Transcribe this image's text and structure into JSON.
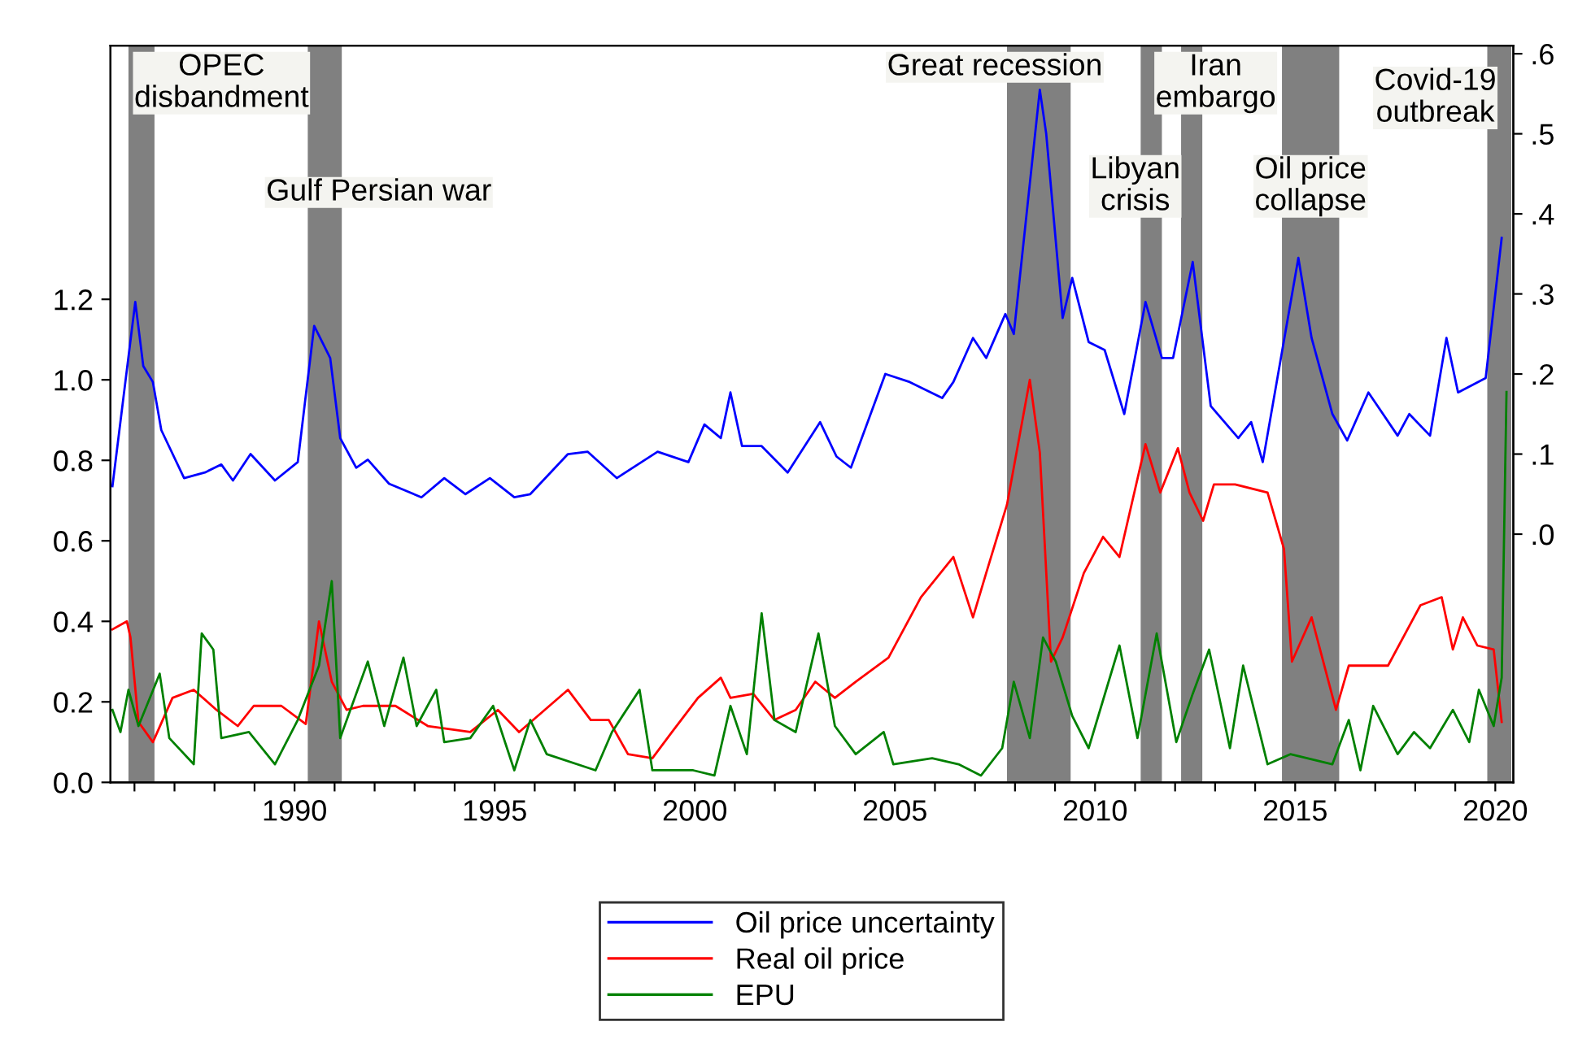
{
  "chart_data": {
    "type": "line",
    "legend": "bottom",
    "grid": false,
    "marker": "none",
    "line_style": "solid",
    "xlim": [
      1985.4,
      2020.45
    ],
    "ylim": [
      0,
      1.83
    ],
    "y2lim": [
      -0.31,
      0.61
    ],
    "xticks": [
      {
        "value": 1986,
        "label": null
      },
      {
        "value": 1987,
        "label": null
      },
      {
        "value": 1988,
        "label": null
      },
      {
        "value": 1989,
        "label": null
      },
      1990,
      {
        "value": 1991,
        "label": null
      },
      {
        "value": 1992,
        "label": null
      },
      {
        "value": 1993,
        "label": null
      },
      {
        "value": 1994,
        "label": null
      },
      1995,
      {
        "value": 1996,
        "label": null
      },
      {
        "value": 1997,
        "label": null
      },
      {
        "value": 1998,
        "label": null
      },
      {
        "value": 1999,
        "label": null
      },
      2000,
      {
        "value": 2001,
        "label": null
      },
      {
        "value": 2002,
        "label": null
      },
      {
        "value": 2003,
        "label": null
      },
      {
        "value": 2004,
        "label": null
      },
      2005,
      {
        "value": 2006,
        "label": null
      },
      {
        "value": 2007,
        "label": null
      },
      {
        "value": 2008,
        "label": null
      },
      {
        "value": 2009,
        "label": null
      },
      2010,
      {
        "value": 2011,
        "label": null
      },
      {
        "value": 2012,
        "label": null
      },
      {
        "value": 2013,
        "label": null
      },
      {
        "value": 2014,
        "label": null
      },
      2015,
      {
        "value": 2016,
        "label": null
      },
      {
        "value": 2017,
        "label": null
      },
      {
        "value": 2018,
        "label": null
      },
      {
        "value": 2019,
        "label": null
      },
      2020
    ],
    "yticks": [
      {
        "value": 0,
        "label": "0.0"
      },
      {
        "value": 0.2,
        "label": "0.2"
      },
      {
        "value": 0.4,
        "label": "0.4"
      },
      {
        "value": 0.6,
        "label": "0.6"
      },
      {
        "value": 0.8,
        "label": "0.8"
      },
      {
        "value": 1,
        "label": "1.0"
      },
      {
        "value": 1.2,
        "label": "1.2"
      }
    ],
    "y2ticks": [
      {
        "value": 0,
        "label": ".0"
      },
      {
        "value": 0.1,
        "label": ".1"
      },
      {
        "value": 0.2,
        "label": ".2"
      },
      {
        "value": 0.3,
        "label": ".3"
      },
      {
        "value": 0.4,
        "label": ".4"
      },
      {
        "value": 0.5,
        "label": ".5"
      },
      {
        "value": 0.6,
        "label": ".6"
      }
    ],
    "bands": [
      {
        "axis": "x",
        "from": 1985.85,
        "to": 1986.5,
        "color": "#808080",
        "label": "OPEC\ndisbandment"
      },
      {
        "axis": "x",
        "from": 1990.33,
        "to": 1991.18,
        "color": "#808080",
        "label": "Gulf Persian war"
      },
      {
        "axis": "x",
        "from": 2007.8,
        "to": 2009.39,
        "color": "#808080",
        "label": "Great recession"
      },
      {
        "axis": "x",
        "from": 2011.14,
        "to": 2011.67,
        "color": "#808080",
        "label": "Libyan\ncrisis"
      },
      {
        "axis": "x",
        "from": 2012.15,
        "to": 2012.68,
        "color": "#808080",
        "label": "Iran\nembargo"
      },
      {
        "axis": "x",
        "from": 2014.67,
        "to": 2016.1,
        "color": "#808080",
        "label": "Oil price\ncollapse"
      },
      {
        "axis": "x",
        "from": 2019.8,
        "to": 2020.4,
        "color": "#808080",
        "label": "Covid-19\noutbreak"
      }
    ],
    "series": [
      {
        "name": "Oil price uncertainty",
        "color": "#0000ff",
        "axis": "y2",
        "x": [
          1985.45,
          1986.02,
          1986.22,
          1986.46,
          1986.67,
          1987.24,
          1987.76,
          1988.17,
          1988.46,
          1988.9,
          1989.51,
          1990.08,
          1990.49,
          1990.69,
          1990.89,
          1991.14,
          1991.54,
          1991.83,
          1992.36,
          1993.17,
          1993.74,
          1994.27,
          1994.88,
          1995.49,
          1995.89,
          1996.83,
          1997.32,
          1998.05,
          1999.07,
          1999.84,
          2000.24,
          2000.65,
          2000.89,
          2001.18,
          2001.67,
          2002.32,
          2003.13,
          2003.54,
          2003.9,
          2004.76,
          2005.37,
          2006.18,
          2006.46,
          2006.95,
          2007.28,
          2007.76,
          2007.97,
          2008.62,
          2008.78,
          2009.19,
          2009.43,
          2009.84,
          2010.24,
          2010.73,
          2011.26,
          2011.67,
          2011.95,
          2012.44,
          2012.89,
          2013.58,
          2013.9,
          2014.19,
          2015.08,
          2015.41,
          2015.93,
          2016.3,
          2016.83,
          2017.56,
          2017.85,
          2018.37,
          2018.78,
          2019.07,
          2019.76,
          2020.0,
          2020.16
        ],
        "values": [
          0.06,
          0.29,
          0.21,
          0.19,
          0.13,
          0.07,
          0.077,
          0.087,
          0.067,
          0.1,
          0.067,
          0.09,
          0.26,
          0.24,
          0.22,
          0.12,
          0.083,
          0.093,
          0.063,
          0.046,
          0.07,
          0.05,
          0.07,
          0.046,
          0.05,
          0.1,
          0.103,
          0.07,
          0.103,
          0.09,
          0.137,
          0.12,
          0.177,
          0.11,
          0.11,
          0.077,
          0.14,
          0.097,
          0.083,
          0.2,
          0.19,
          0.17,
          0.19,
          0.245,
          0.22,
          0.275,
          0.25,
          0.555,
          0.5,
          0.27,
          0.32,
          0.24,
          0.23,
          0.15,
          0.29,
          0.22,
          0.22,
          0.34,
          0.16,
          0.12,
          0.14,
          0.09,
          0.345,
          0.245,
          0.15,
          0.117,
          0.177,
          0.123,
          0.15,
          0.123,
          0.245,
          0.177,
          0.195,
          0.3,
          0.37
        ]
      },
      {
        "name": "Real oil price",
        "color": "#ff0000",
        "x": [
          1985.45,
          1985.81,
          1985.9,
          1986.1,
          1986.46,
          1986.95,
          1987.48,
          1988.05,
          1988.58,
          1988.98,
          1989.67,
          1990.28,
          1990.61,
          1990.93,
          1991.3,
          1991.71,
          1992.52,
          1993.33,
          1994.39,
          1995.08,
          1995.61,
          1996.83,
          1997.4,
          1997.85,
          1998.33,
          1998.94,
          1999.43,
          2000.08,
          2000.65,
          2000.89,
          2001.46,
          2001.99,
          2002.52,
          2003.01,
          2003.5,
          2004.02,
          2004.84,
          2005.65,
          2006.46,
          2006.95,
          2007.28,
          2007.8,
          2008.37,
          2008.62,
          2008.9,
          2009.19,
          2009.72,
          2010.2,
          2010.61,
          2011.26,
          2011.63,
          2012.07,
          2012.36,
          2012.7,
          2012.97,
          2013.5,
          2014.31,
          2014.72,
          2014.92,
          2015.41,
          2016.02,
          2016.34,
          2017.32,
          2018.13,
          2018.66,
          2018.94,
          2019.19,
          2019.55,
          2019.96,
          2020.16
        ],
        "values": [
          0.38,
          0.4,
          0.36,
          0.15,
          0.1,
          0.21,
          0.23,
          0.18,
          0.14,
          0.19,
          0.19,
          0.145,
          0.4,
          0.25,
          0.18,
          0.19,
          0.19,
          0.14,
          0.125,
          0.18,
          0.125,
          0.23,
          0.155,
          0.155,
          0.07,
          0.06,
          0.125,
          0.21,
          0.26,
          0.21,
          0.22,
          0.155,
          0.18,
          0.25,
          0.21,
          0.25,
          0.31,
          0.46,
          0.56,
          0.41,
          0.52,
          0.69,
          1.0,
          0.82,
          0.3,
          0.36,
          0.52,
          0.61,
          0.56,
          0.84,
          0.72,
          0.83,
          0.72,
          0.65,
          0.74,
          0.74,
          0.72,
          0.58,
          0.3,
          0.41,
          0.18,
          0.29,
          0.29,
          0.44,
          0.46,
          0.33,
          0.41,
          0.34,
          0.33,
          0.15
        ]
      },
      {
        "name": "EPU",
        "color": "#008000",
        "x": [
          1985.45,
          1985.65,
          1985.85,
          1986.1,
          1986.63,
          1986.87,
          1987.48,
          1987.68,
          1987.97,
          1988.17,
          1988.86,
          1989.51,
          1990.08,
          1990.61,
          1990.93,
          1991.14,
          1991.83,
          1992.24,
          1992.72,
          1993.05,
          1993.54,
          1993.74,
          1994.39,
          1994.96,
          1995.49,
          1995.89,
          1996.3,
          1997.52,
          1997.93,
          1998.62,
          1998.94,
          1999.96,
          2000.49,
          2000.89,
          2001.3,
          2001.67,
          2001.99,
          2002.52,
          2003.09,
          2003.5,
          2004.02,
          2004.72,
          2004.96,
          2005.93,
          2006.59,
          2007.15,
          2007.68,
          2007.97,
          2008.37,
          2008.7,
          2009.02,
          2009.43,
          2009.84,
          2010.61,
          2011.06,
          2011.54,
          2012.03,
          2012.44,
          2012.85,
          2013.37,
          2013.7,
          2014.31,
          2014.88,
          2015.93,
          2016.34,
          2016.63,
          2016.95,
          2017.56,
          2017.97,
          2018.37,
          2018.94,
          2019.35,
          2019.59,
          2019.96,
          2020.16,
          2020.28
        ],
        "values": [
          0.18,
          0.125,
          0.23,
          0.14,
          0.27,
          0.11,
          0.045,
          0.37,
          0.33,
          0.11,
          0.125,
          0.045,
          0.155,
          0.29,
          0.5,
          0.11,
          0.3,
          0.14,
          0.31,
          0.14,
          0.23,
          0.1,
          0.11,
          0.19,
          0.03,
          0.155,
          0.07,
          0.03,
          0.125,
          0.23,
          0.03,
          0.03,
          0.017,
          0.19,
          0.07,
          0.42,
          0.155,
          0.125,
          0.37,
          0.14,
          0.07,
          0.125,
          0.045,
          0.06,
          0.045,
          0.017,
          0.085,
          0.25,
          0.11,
          0.36,
          0.3,
          0.165,
          0.085,
          0.34,
          0.11,
          0.37,
          0.1,
          0.22,
          0.33,
          0.085,
          0.29,
          0.045,
          0.07,
          0.045,
          0.155,
          0.03,
          0.19,
          0.07,
          0.125,
          0.085,
          0.18,
          0.1,
          0.23,
          0.14,
          0.26,
          0.97
        ]
      }
    ]
  }
}
